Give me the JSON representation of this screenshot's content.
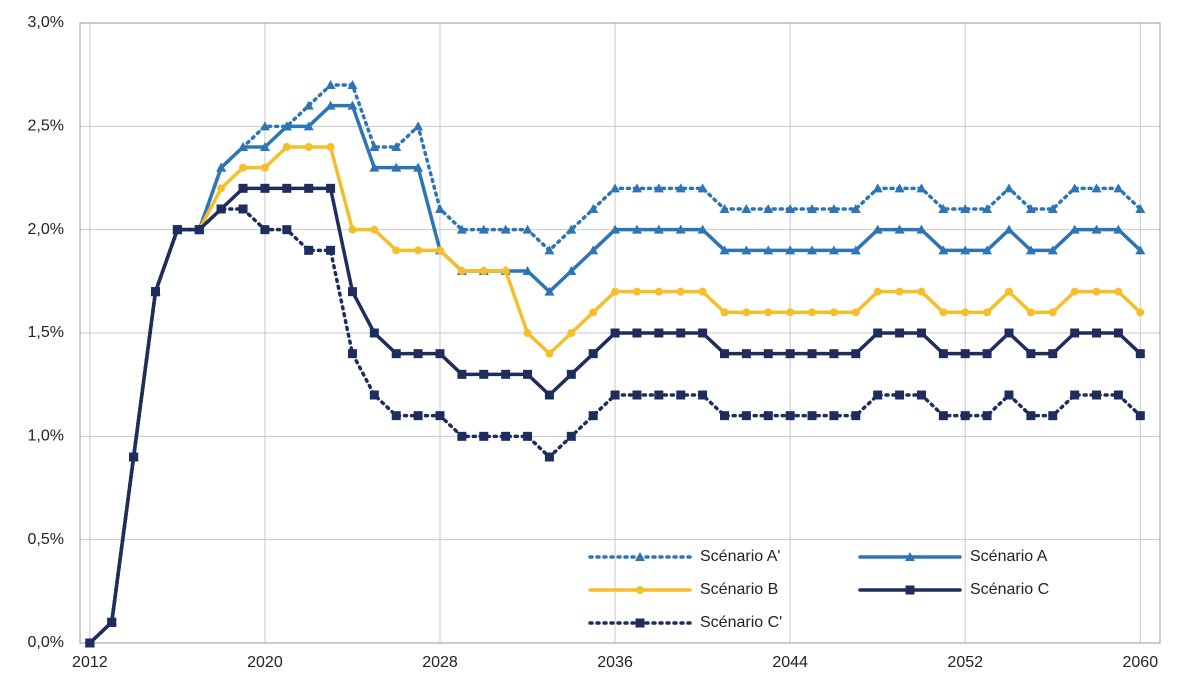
{
  "chart_data": {
    "type": "line",
    "x": [
      2012,
      2013,
      2014,
      2015,
      2016,
      2017,
      2018,
      2019,
      2020,
      2021,
      2022,
      2023,
      2024,
      2025,
      2026,
      2027,
      2028,
      2029,
      2030,
      2031,
      2032,
      2033,
      2034,
      2035,
      2036,
      2037,
      2038,
      2039,
      2040,
      2041,
      2042,
      2043,
      2044,
      2045,
      2046,
      2047,
      2048,
      2049,
      2050,
      2051,
      2052,
      2053,
      2054,
      2055,
      2056,
      2057,
      2058,
      2059,
      2060
    ],
    "series": [
      {
        "name": "Scénario A'",
        "color": "#2e75b6",
        "style": "dotted",
        "marker": "triangle",
        "values": [
          0,
          0.1,
          0.9,
          1.7,
          2.0,
          2.0,
          2.3,
          2.4,
          2.5,
          2.5,
          2.6,
          2.7,
          2.7,
          2.4,
          2.4,
          2.5,
          2.1,
          2.0,
          2.0,
          2.0,
          2.0,
          1.9,
          2.0,
          2.1,
          2.2,
          2.2,
          2.2,
          2.2,
          2.2,
          2.1,
          2.1,
          2.1,
          2.1,
          2.1,
          2.1,
          2.1,
          2.2,
          2.2,
          2.2,
          2.1,
          2.1,
          2.1,
          2.2,
          2.1,
          2.1,
          2.2,
          2.2,
          2.2,
          2.1
        ]
      },
      {
        "name": "Scénario A",
        "color": "#2e75b6",
        "style": "solid",
        "marker": "triangle",
        "values": [
          0,
          0.1,
          0.9,
          1.7,
          2.0,
          2.0,
          2.3,
          2.4,
          2.4,
          2.5,
          2.5,
          2.6,
          2.6,
          2.3,
          2.3,
          2.3,
          1.9,
          1.8,
          1.8,
          1.8,
          1.8,
          1.7,
          1.8,
          1.9,
          2.0,
          2.0,
          2.0,
          2.0,
          2.0,
          1.9,
          1.9,
          1.9,
          1.9,
          1.9,
          1.9,
          1.9,
          2.0,
          2.0,
          2.0,
          1.9,
          1.9,
          1.9,
          2.0,
          1.9,
          1.9,
          2.0,
          2.0,
          2.0,
          1.9
        ]
      },
      {
        "name": "Scénario B",
        "color": "#f4bf2a",
        "style": "solid",
        "marker": "circle",
        "values": [
          0,
          0.1,
          0.9,
          1.7,
          2.0,
          2.0,
          2.2,
          2.3,
          2.3,
          2.4,
          2.4,
          2.4,
          2.0,
          2.0,
          1.9,
          1.9,
          1.9,
          1.8,
          1.8,
          1.8,
          1.5,
          1.4,
          1.5,
          1.6,
          1.7,
          1.7,
          1.7,
          1.7,
          1.7,
          1.6,
          1.6,
          1.6,
          1.6,
          1.6,
          1.6,
          1.6,
          1.7,
          1.7,
          1.7,
          1.6,
          1.6,
          1.6,
          1.7,
          1.6,
          1.6,
          1.7,
          1.7,
          1.7,
          1.6
        ]
      },
      {
        "name": "Scénario C",
        "color": "#1f2d5c",
        "style": "solid",
        "marker": "square",
        "values": [
          0,
          0.1,
          0.9,
          1.7,
          2.0,
          2.0,
          2.1,
          2.2,
          2.2,
          2.2,
          2.2,
          2.2,
          1.7,
          1.5,
          1.4,
          1.4,
          1.4,
          1.3,
          1.3,
          1.3,
          1.3,
          1.2,
          1.3,
          1.4,
          1.5,
          1.5,
          1.5,
          1.5,
          1.5,
          1.4,
          1.4,
          1.4,
          1.4,
          1.4,
          1.4,
          1.4,
          1.5,
          1.5,
          1.5,
          1.4,
          1.4,
          1.4,
          1.5,
          1.4,
          1.4,
          1.5,
          1.5,
          1.5,
          1.4
        ]
      },
      {
        "name": "Scénario C'",
        "color": "#1f2d5c",
        "style": "dotted",
        "marker": "square",
        "values": [
          0,
          0.1,
          0.9,
          1.7,
          2.0,
          2.0,
          2.1,
          2.1,
          2.0,
          2.0,
          1.9,
          1.9,
          1.4,
          1.2,
          1.1,
          1.1,
          1.1,
          1.0,
          1.0,
          1.0,
          1.0,
          0.9,
          1.0,
          1.1,
          1.2,
          1.2,
          1.2,
          1.2,
          1.2,
          1.1,
          1.1,
          1.1,
          1.1,
          1.1,
          1.1,
          1.1,
          1.2,
          1.2,
          1.2,
          1.1,
          1.1,
          1.1,
          1.2,
          1.1,
          1.1,
          1.2,
          1.2,
          1.2,
          1.1
        ]
      }
    ],
    "xlim": [
      2011.55,
      2060.9
    ],
    "xticks": [
      2012,
      2020,
      2028,
      2036,
      2044,
      2052,
      2060
    ],
    "ylim": [
      0,
      3
    ],
    "yticks": [
      {
        "value": 0,
        "label": "0,0%"
      },
      {
        "value": 0.5,
        "label": "0,5%"
      },
      {
        "value": 1,
        "label": "1,0%"
      },
      {
        "value": 1.5,
        "label": "1,5%"
      },
      {
        "value": 2,
        "label": "2,0%"
      },
      {
        "value": 2.5,
        "label": "2,5%"
      },
      {
        "value": 3,
        "label": "3,0%"
      }
    ],
    "grid": true,
    "legend": "bottom-right"
  }
}
